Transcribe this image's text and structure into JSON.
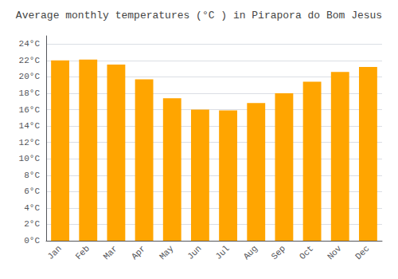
{
  "chart_data": {
    "type": "bar",
    "title": "Average monthly temperatures (°C ) in Pirapora do Bom Jesus",
    "categories": [
      "Jan",
      "Feb",
      "Mar",
      "Apr",
      "May",
      "Jun",
      "Jul",
      "Aug",
      "Sep",
      "Oct",
      "Nov",
      "Dec"
    ],
    "values": [
      22.0,
      22.1,
      21.5,
      19.7,
      17.4,
      16.0,
      15.9,
      16.8,
      18.0,
      19.4,
      20.6,
      21.2
    ],
    "color": "#FFA500",
    "ylim": [
      0,
      25
    ],
    "yticks": [
      {
        "value": 0,
        "label": "0°C"
      },
      {
        "value": 2,
        "label": "2°C"
      },
      {
        "value": 4,
        "label": "4°C"
      },
      {
        "value": 6,
        "label": "6°C"
      },
      {
        "value": 8,
        "label": "8°C"
      },
      {
        "value": 10,
        "label": "10°C"
      },
      {
        "value": 12,
        "label": "12°C"
      },
      {
        "value": 14,
        "label": "14°C"
      },
      {
        "value": 16,
        "label": "16°C"
      },
      {
        "value": 18,
        "label": "18°C"
      },
      {
        "value": 20,
        "label": "20°C"
      },
      {
        "value": 22,
        "label": "22°C"
      },
      {
        "value": 24,
        "label": "24°C"
      }
    ],
    "grid": true
  }
}
